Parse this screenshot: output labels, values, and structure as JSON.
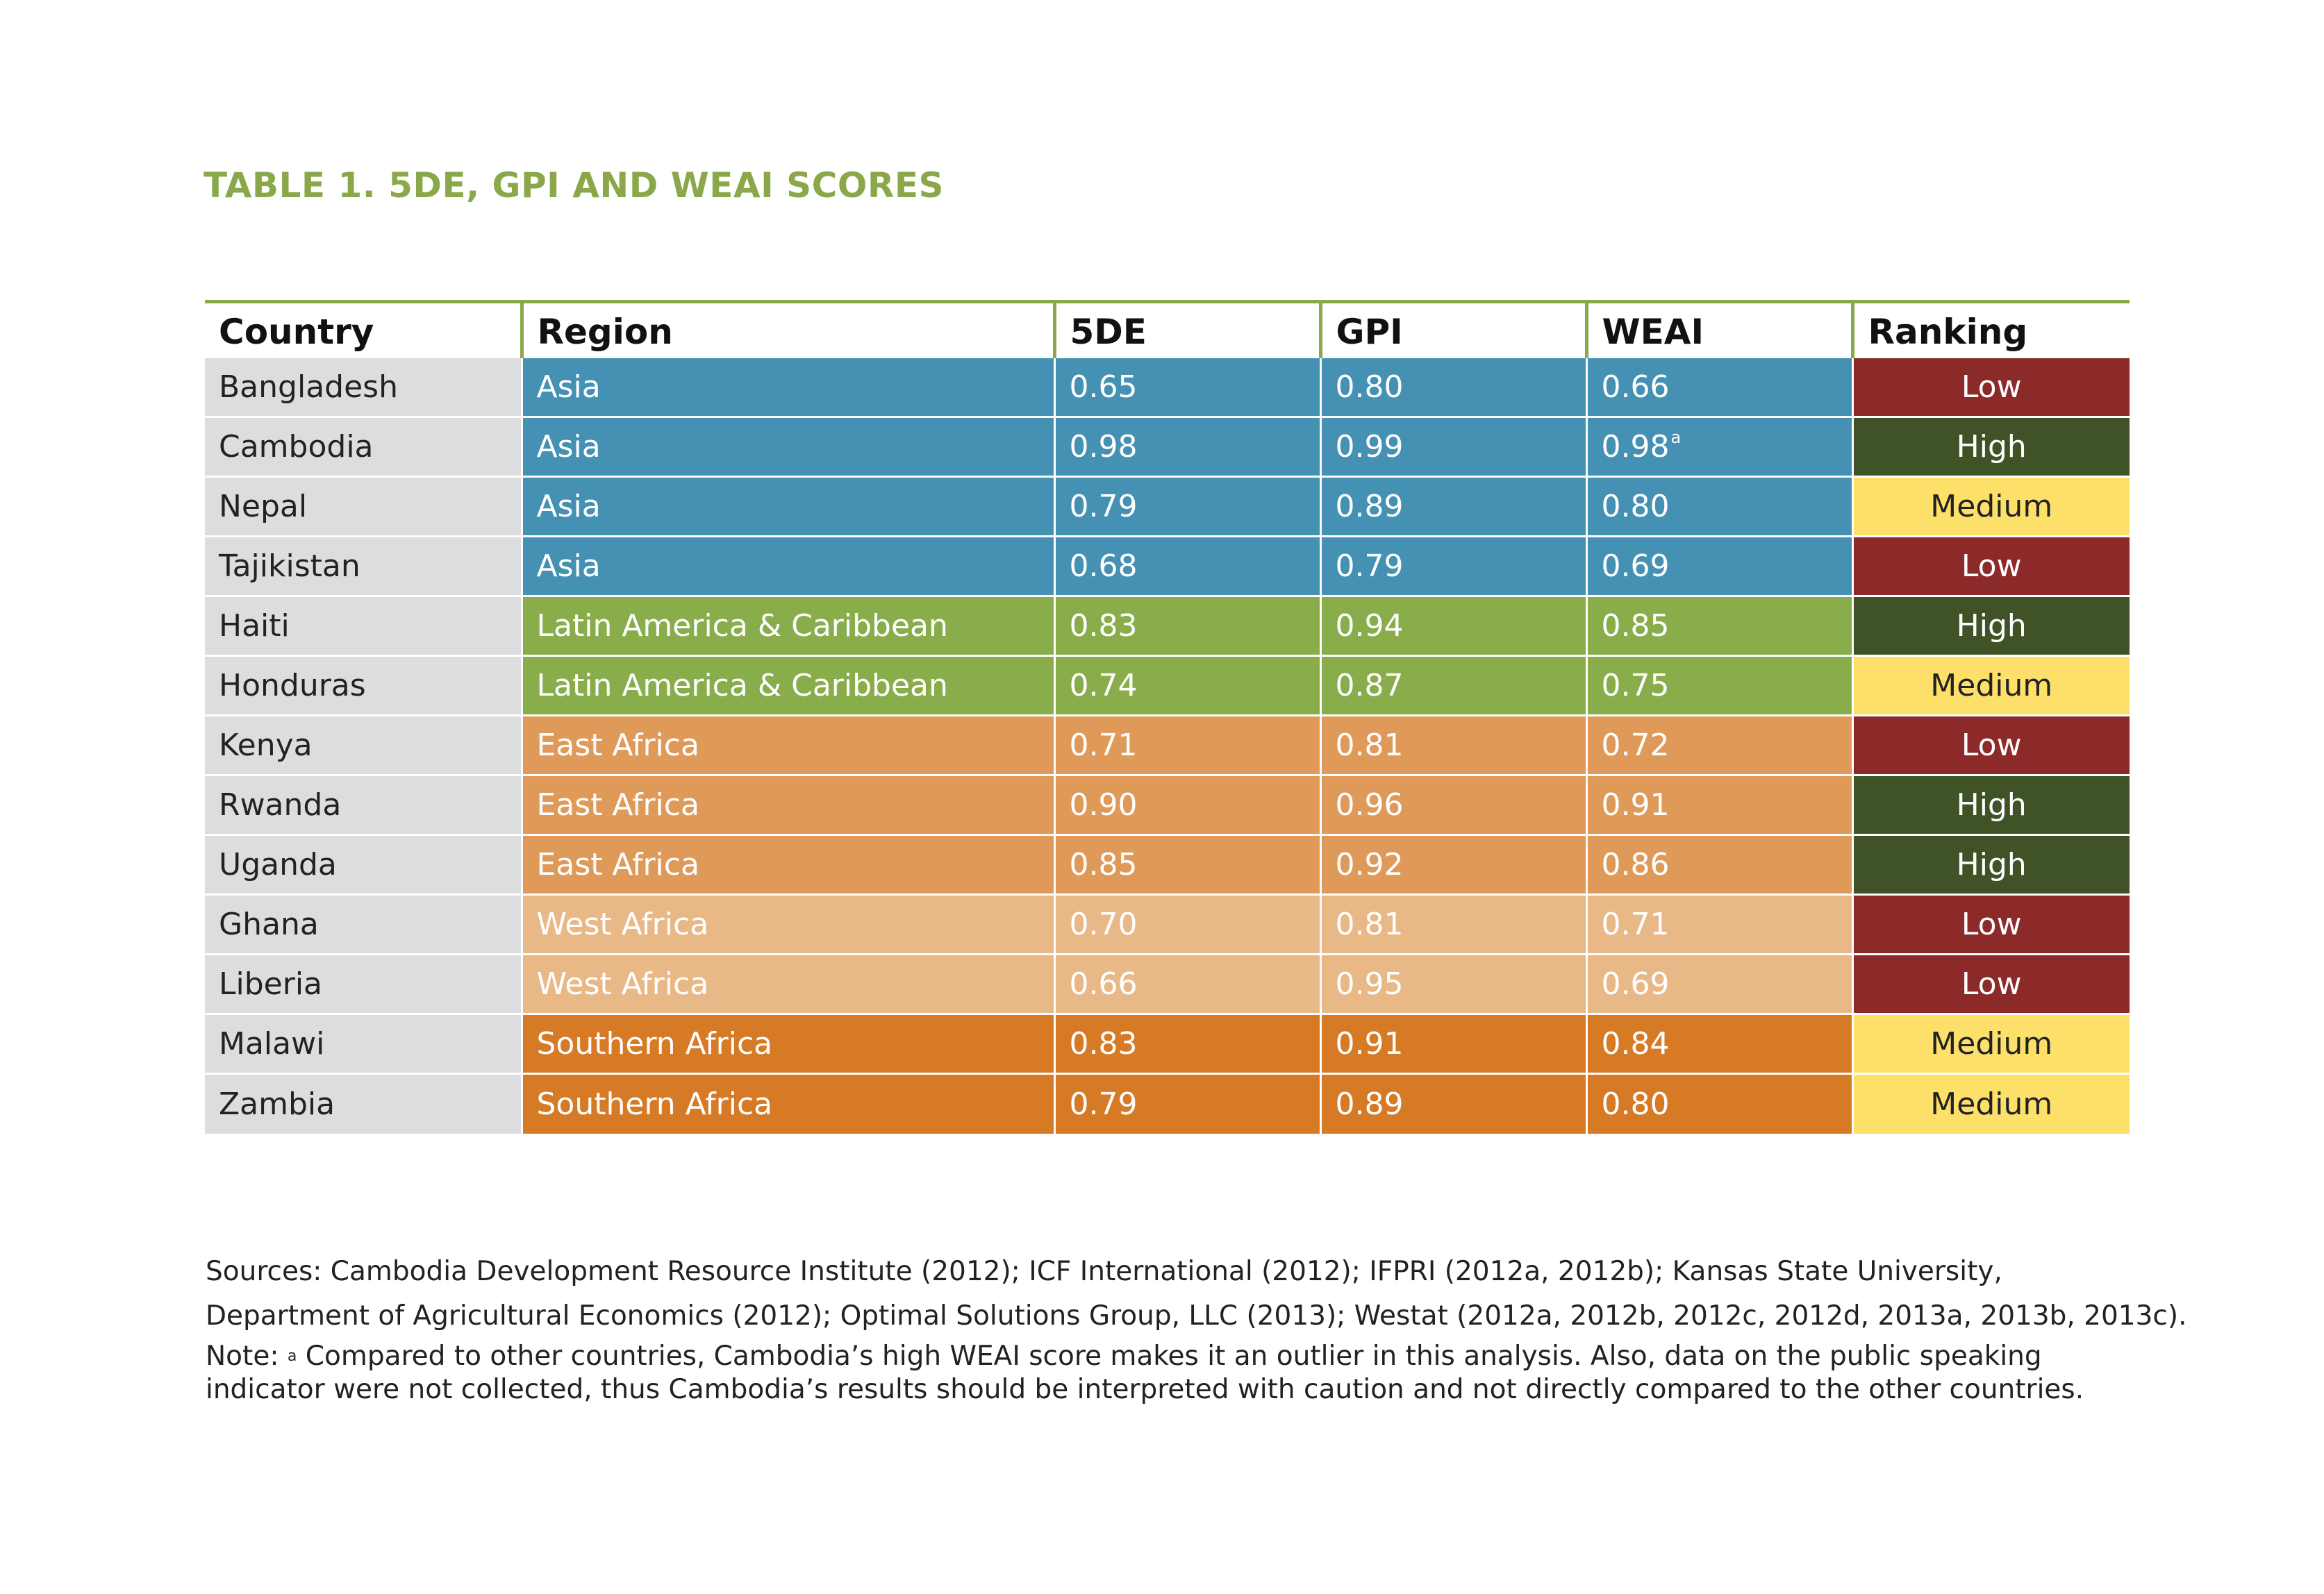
{
  "title": "TABLE 1. 5DE, GPI AND WEAI SCORES",
  "colors": {
    "title": "#8aa84a",
    "asia": "#4591b3",
    "latin_america_caribbean": "#8aad4b",
    "east_africa": "#df9a5a",
    "west_africa": "#e8b886",
    "southern_africa": "#d67a26",
    "low": "#8c2a2a",
    "high": "#3f5326",
    "medium": "#fde06a",
    "country_cell": "#dcdddf"
  },
  "table": {
    "headers": [
      "Country",
      "Region",
      "5DE",
      "GPI",
      "WEAI",
      "Ranking"
    ],
    "rows": [
      {
        "country": "Bangladesh",
        "region": "Asia",
        "fiveDE": "0.65",
        "gpi": "0.80",
        "weai": "0.66",
        "weai_note": "",
        "ranking": "Low"
      },
      {
        "country": "Cambodia",
        "region": "Asia",
        "fiveDE": "0.98",
        "gpi": "0.99",
        "weai": "0.98",
        "weai_note": "a",
        "ranking": "High"
      },
      {
        "country": "Nepal",
        "region": "Asia",
        "fiveDE": "0.79",
        "gpi": "0.89",
        "weai": "0.80",
        "weai_note": "",
        "ranking": "Medium"
      },
      {
        "country": "Tajikistan",
        "region": "Asia",
        "fiveDE": "0.68",
        "gpi": "0.79",
        "weai": "0.69",
        "weai_note": "",
        "ranking": "Low"
      },
      {
        "country": "Haiti",
        "region": "Latin America & Caribbean",
        "fiveDE": "0.83",
        "gpi": "0.94",
        "weai": "0.85",
        "weai_note": "",
        "ranking": "High"
      },
      {
        "country": "Honduras",
        "region": "Latin America & Caribbean",
        "fiveDE": "0.74",
        "gpi": "0.87",
        "weai": "0.75",
        "weai_note": "",
        "ranking": "Medium"
      },
      {
        "country": "Kenya",
        "region": "East Africa",
        "fiveDE": "0.71",
        "gpi": "0.81",
        "weai": "0.72",
        "weai_note": "",
        "ranking": "Low"
      },
      {
        "country": "Rwanda",
        "region": "East Africa",
        "fiveDE": "0.90",
        "gpi": "0.96",
        "weai": "0.91",
        "weai_note": "",
        "ranking": "High"
      },
      {
        "country": "Uganda",
        "region": "East Africa",
        "fiveDE": "0.85",
        "gpi": "0.92",
        "weai": "0.86",
        "weai_note": "",
        "ranking": "High"
      },
      {
        "country": "Ghana",
        "region": "West Africa",
        "fiveDE": "0.70",
        "gpi": "0.81",
        "weai": "0.71",
        "weai_note": "",
        "ranking": "Low"
      },
      {
        "country": "Liberia",
        "region": "West Africa",
        "fiveDE": "0.66",
        "gpi": "0.95",
        "weai": "0.69",
        "weai_note": "",
        "ranking": "Low"
      },
      {
        "country": "Malawi",
        "region": "Southern Africa",
        "fiveDE": "0.83",
        "gpi": "0.91",
        "weai": "0.84",
        "weai_note": "",
        "ranking": "Medium"
      },
      {
        "country": "Zambia",
        "region": "Southern Africa",
        "fiveDE": "0.79",
        "gpi": "0.89",
        "weai": "0.80",
        "weai_note": "",
        "ranking": "Medium"
      }
    ]
  },
  "sources_line1": "Sources: Cambodia Development Resource Institute (2012); ICF International (2012); IFPRI (2012a, 2012b); Kansas State University,",
  "sources_line2": "Department of Agricultural Economics (2012); Optimal Solutions Group, LLC (2013); Westat (2012a, 2012b, 2012c, 2012d, 2013a, 2013b, 2013c).",
  "note_prefix": "Note:",
  "note_marker": "a",
  "note_text": "Compared to other countries, Cambodia’s high WEAI score makes it an outlier in this analysis. Also, data on the public speaking indicator were not collected, thus Cambodia’s results should be interpreted with caution and not directly compared to the other countries."
}
